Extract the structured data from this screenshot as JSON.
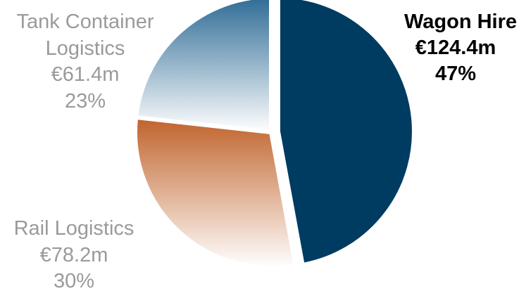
{
  "chart_data": {
    "type": "pie",
    "title": "",
    "currency_unit": "€m",
    "slices": [
      {
        "name": "Wagon Hire",
        "value": 124.4,
        "value_label": "€124.4m",
        "percent": 47,
        "percent_label": "47%",
        "color": "#003b62",
        "gradient": false,
        "exploded": true,
        "label_bold": true,
        "label_lines": [
          "Wagon Hire",
          "€124.4m",
          "47%"
        ]
      },
      {
        "name": "Rail Logistics",
        "value": 78.2,
        "value_label": "€78.2m",
        "percent": 30,
        "percent_label": "30%",
        "color": "#c0622a",
        "gradient": true,
        "exploded": false,
        "label_bold": false,
        "label_lines": [
          "Rail Logistics",
          "€78.2m",
          "30%"
        ]
      },
      {
        "name": "Tank Container Logistics",
        "value": 61.4,
        "value_label": "€61.4m",
        "percent": 23,
        "percent_label": "23%",
        "color": "#2e6b95",
        "gradient": true,
        "exploded": false,
        "label_bold": false,
        "label_lines": [
          "Tank Container",
          "Logistics",
          "€61.4m",
          "23%"
        ]
      }
    ],
    "colors": {
      "label_muted": "#9a9a9a",
      "label_strong": "#000000",
      "gradient_end": "#ffffff"
    },
    "legend": "none",
    "start_angle": "12 o'clock",
    "direction": "clockwise"
  }
}
